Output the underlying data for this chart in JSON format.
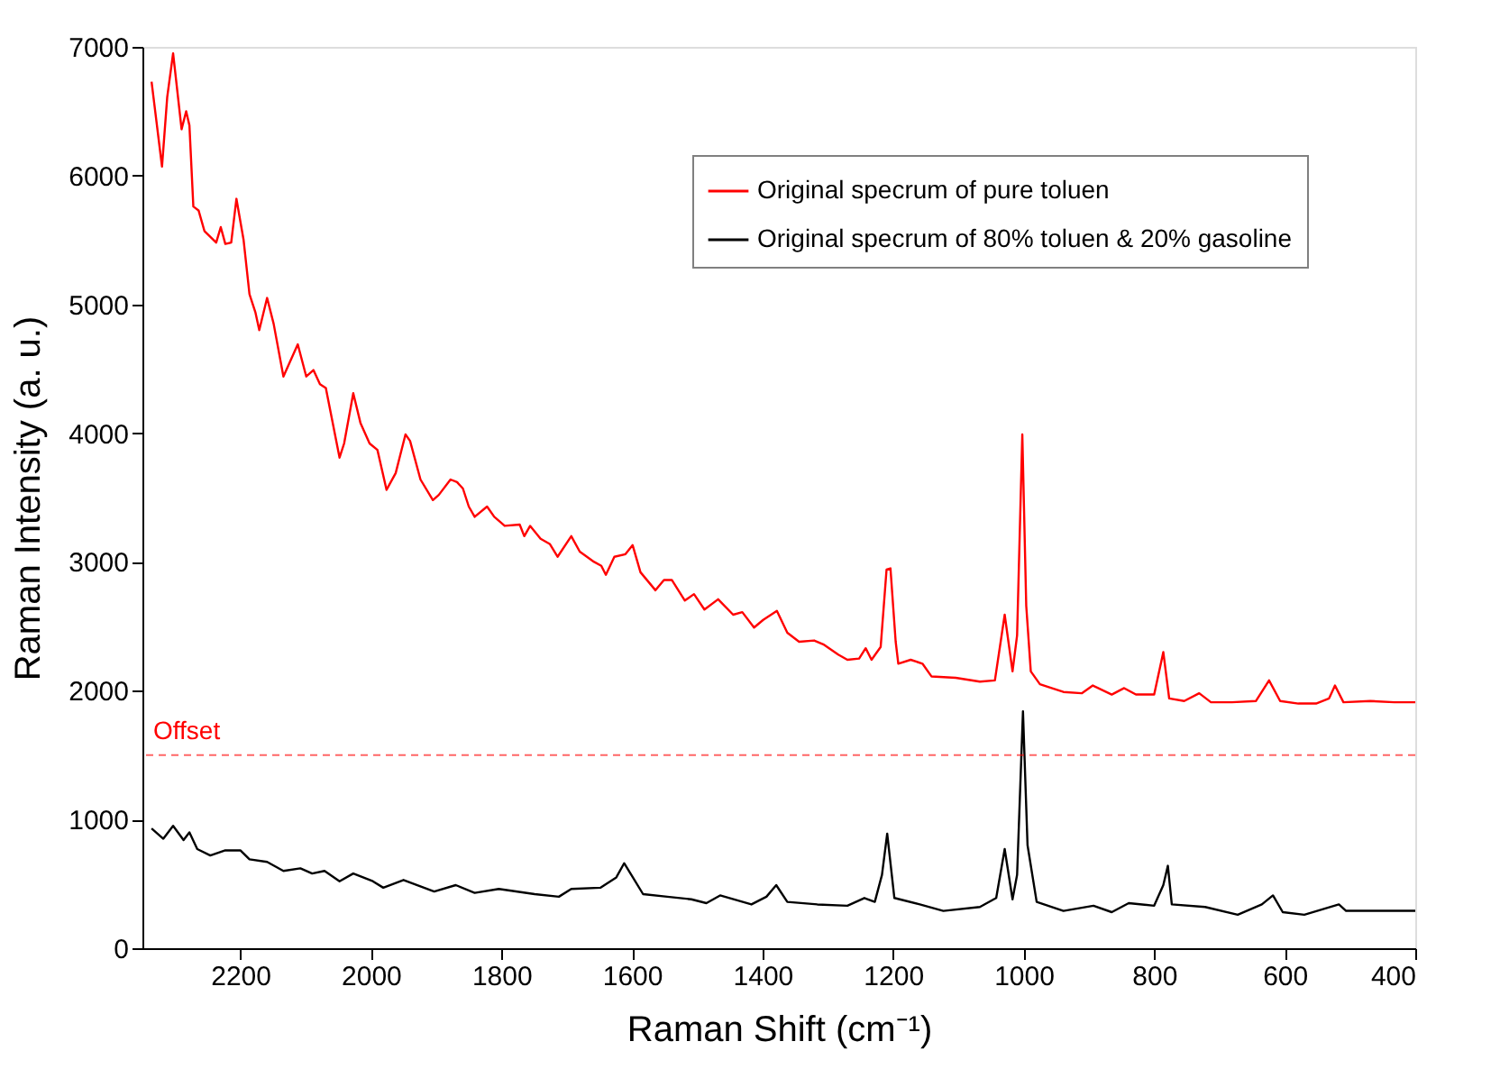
{
  "chart_data": {
    "type": "line",
    "xlabel": "Raman Shift (cm⁻¹)",
    "ylabel": "Raman Intensity (a. u.)",
    "xlim": [
      2350,
      400
    ],
    "xticks": [
      2200,
      2000,
      1800,
      1600,
      1400,
      1200,
      1000,
      800,
      600,
      400
    ],
    "ylim": [
      0,
      7000
    ],
    "yticks": [
      0,
      1000,
      2000,
      3000,
      4000,
      5000,
      6000,
      7000
    ],
    "grid": false,
    "legend": "top right",
    "ref_lines": [
      {
        "axis": "y",
        "value": 1500,
        "label": "Offset",
        "color": "#ff0000",
        "line_style": "dashed"
      }
    ],
    "series": [
      {
        "name": "Original specrum of pure toluen",
        "color": "#ff0000",
        "x": [
          2336,
          2320,
          2312,
          2303,
          2290,
          2283,
          2278,
          2272,
          2264,
          2255,
          2237,
          2230,
          2223,
          2214,
          2206,
          2195,
          2186,
          2177,
          2171,
          2159,
          2149,
          2134,
          2112,
          2099,
          2088,
          2078,
          2069,
          2048,
          2041,
          2027,
          2016,
          2002,
          1990,
          1976,
          1962,
          1947,
          1940,
          1924,
          1905,
          1896,
          1878,
          1868,
          1859,
          1850,
          1841,
          1822,
          1811,
          1795,
          1772,
          1765,
          1756,
          1740,
          1726,
          1714,
          1693,
          1680,
          1658,
          1647,
          1640,
          1627,
          1610,
          1599,
          1587,
          1564,
          1551,
          1539,
          1519,
          1505,
          1489,
          1468,
          1445,
          1431,
          1413,
          1399,
          1378,
          1362,
          1344,
          1321,
          1307,
          1284,
          1270,
          1252,
          1242,
          1233,
          1219,
          1210,
          1204,
          1196,
          1192,
          1173,
          1155,
          1141,
          1104,
          1067,
          1044,
          1029,
          1017,
          1010,
          1002,
          996,
          989,
          975,
          939,
          911,
          894,
          865,
          846,
          828,
          800,
          786,
          777,
          754,
          731,
          713,
          681,
          644,
          624,
          607,
          579,
          552,
          532,
          523,
          510,
          469,
          432,
          400
        ],
        "values": [
          6730,
          6070,
          6610,
          6950,
          6360,
          6500,
          6390,
          5760,
          5730,
          5570,
          5480,
          5600,
          5470,
          5480,
          5820,
          5500,
          5080,
          4940,
          4800,
          5050,
          4850,
          4440,
          4690,
          4440,
          4490,
          4380,
          4350,
          3810,
          3920,
          4310,
          4080,
          3920,
          3870,
          3560,
          3690,
          3990,
          3940,
          3640,
          3480,
          3520,
          3640,
          3620,
          3570,
          3430,
          3350,
          3430,
          3350,
          3280,
          3290,
          3200,
          3280,
          3180,
          3140,
          3040,
          3200,
          3080,
          3000,
          2970,
          2900,
          3040,
          3060,
          3130,
          2920,
          2780,
          2860,
          2860,
          2700,
          2750,
          2630,
          2710,
          2590,
          2610,
          2490,
          2550,
          2620,
          2450,
          2380,
          2390,
          2360,
          2280,
          2240,
          2250,
          2330,
          2240,
          2340,
          2940,
          2950,
          2380,
          2210,
          2240,
          2210,
          2110,
          2100,
          2070,
          2080,
          2590,
          2150,
          2430,
          3990,
          2660,
          2150,
          2050,
          1990,
          1980,
          2040,
          1970,
          2020,
          1970,
          1970,
          2300,
          1940,
          1920,
          1980,
          1910,
          1910,
          1920,
          2080,
          1920,
          1900,
          1900,
          1940,
          2040,
          1910,
          1920,
          1910,
          1910
        ]
      },
      {
        "name": "Original specrum of 80% toluen & 20% gasoline",
        "color": "#000000",
        "x": [
          2336,
          2318,
          2303,
          2287,
          2278,
          2266,
          2246,
          2223,
          2200,
          2186,
          2159,
          2134,
          2108,
          2090,
          2071,
          2048,
          2027,
          1997,
          1981,
          1950,
          1903,
          1870,
          1841,
          1804,
          1749,
          1712,
          1693,
          1648,
          1624,
          1612,
          1601,
          1583,
          1546,
          1509,
          1486,
          1465,
          1417,
          1394,
          1379,
          1362,
          1316,
          1270,
          1244,
          1228,
          1217,
          1209,
          1198,
          1159,
          1123,
          1067,
          1042,
          1029,
          1017,
          1010,
          1001,
          994,
          980,
          939,
          893,
          865,
          839,
          800,
          786,
          779,
          773,
          722,
          672,
          635,
          618,
          603,
          570,
          517,
          506,
          460,
          400
        ],
        "values": [
          930,
          850,
          950,
          840,
          900,
          770,
          720,
          760,
          760,
          690,
          670,
          600,
          620,
          580,
          600,
          520,
          580,
          520,
          470,
          530,
          440,
          490,
          430,
          460,
          420,
          400,
          460,
          470,
          550,
          660,
          570,
          420,
          400,
          380,
          350,
          410,
          340,
          400,
          490,
          360,
          340,
          330,
          390,
          360,
          570,
          890,
          390,
          340,
          290,
          320,
          390,
          770,
          380,
          570,
          1840,
          800,
          360,
          290,
          330,
          280,
          350,
          330,
          490,
          640,
          340,
          320,
          260,
          340,
          410,
          280,
          260,
          340,
          290,
          290,
          290
        ]
      }
    ]
  }
}
